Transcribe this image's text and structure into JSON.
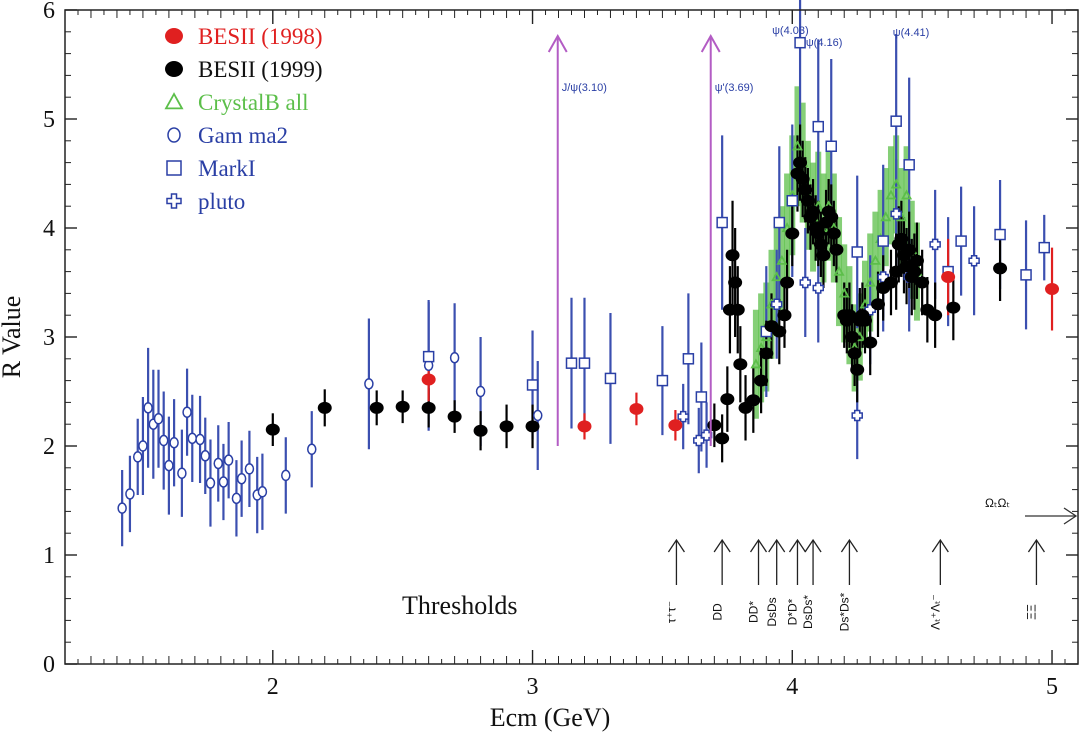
{
  "chart_data": {
    "type": "scatter",
    "xlabel": "Ecm (GeV)",
    "ylabel": "R Value",
    "xlim": [
      1.2,
      5.1
    ],
    "ylim": [
      0,
      6
    ],
    "xticks": [
      2,
      3,
      4,
      5
    ],
    "yticks": [
      0,
      1,
      2,
      3,
      4,
      5,
      6
    ],
    "thresholds_label": "Thresholds",
    "colors": {
      "red": "#e02020",
      "black": "#000000",
      "green": "#5cbf4a",
      "blue": "#2a3fa5",
      "magenta": "#b35cc4"
    },
    "series": [
      {
        "name": "BESII (1998)",
        "marker": "filled-circle",
        "color": "red",
        "points": [
          [
            2.6,
            2.61,
            0.2
          ],
          [
            3.2,
            2.18,
            0.12
          ],
          [
            3.4,
            2.34,
            0.15
          ],
          [
            3.55,
            2.19,
            0.14
          ],
          [
            4.6,
            3.55,
            0.35
          ],
          [
            5.0,
            3.44,
            0.38
          ]
        ]
      },
      {
        "name": "BESII (1999)",
        "marker": "filled-circle",
        "color": "black",
        "points": [
          [
            2.0,
            2.15,
            0.15
          ],
          [
            2.2,
            2.35,
            0.17
          ],
          [
            2.4,
            2.35,
            0.16
          ],
          [
            2.5,
            2.36,
            0.15
          ],
          [
            2.6,
            2.35,
            0.18
          ],
          [
            2.7,
            2.27,
            0.15
          ],
          [
            2.8,
            2.14,
            0.18
          ],
          [
            2.9,
            2.18,
            0.2
          ],
          [
            3.0,
            2.18,
            0.2
          ],
          [
            3.7,
            2.19,
            0.2
          ],
          [
            3.73,
            2.07,
            0.22
          ],
          [
            3.75,
            2.43,
            0.3
          ],
          [
            3.76,
            3.25,
            0.4
          ],
          [
            3.77,
            3.75,
            0.5
          ],
          [
            3.78,
            3.5,
            0.5
          ],
          [
            3.79,
            3.25,
            0.4
          ],
          [
            3.8,
            2.75,
            0.35
          ],
          [
            3.82,
            2.35,
            0.3
          ],
          [
            3.85,
            2.42,
            0.3
          ],
          [
            3.88,
            2.6,
            0.3
          ],
          [
            3.9,
            2.85,
            0.3
          ],
          [
            3.92,
            3.1,
            0.3
          ],
          [
            3.95,
            3.05,
            0.3
          ],
          [
            3.97,
            3.2,
            0.3
          ],
          [
            3.98,
            3.5,
            0.3
          ],
          [
            4.0,
            3.95,
            0.3
          ],
          [
            4.02,
            4.5,
            0.35
          ],
          [
            4.03,
            4.6,
            0.35
          ],
          [
            4.04,
            4.45,
            0.35
          ],
          [
            4.05,
            4.35,
            0.3
          ],
          [
            4.06,
            4.25,
            0.3
          ],
          [
            4.07,
            4.1,
            0.3
          ],
          [
            4.08,
            4.15,
            0.3
          ],
          [
            4.09,
            4.0,
            0.3
          ],
          [
            4.1,
            3.95,
            0.3
          ],
          [
            4.11,
            3.85,
            0.3
          ],
          [
            4.12,
            3.75,
            0.3
          ],
          [
            4.13,
            4.05,
            0.3
          ],
          [
            4.14,
            4.15,
            0.3
          ],
          [
            4.15,
            4.1,
            0.3
          ],
          [
            4.16,
            3.95,
            0.3
          ],
          [
            4.17,
            3.8,
            0.3
          ],
          [
            4.2,
            3.2,
            0.3
          ],
          [
            4.21,
            3.15,
            0.3
          ],
          [
            4.22,
            3.2,
            0.3
          ],
          [
            4.23,
            3.0,
            0.3
          ],
          [
            4.24,
            2.85,
            0.3
          ],
          [
            4.25,
            2.7,
            0.3
          ],
          [
            4.26,
            3.15,
            0.3
          ],
          [
            4.27,
            3.2,
            0.3
          ],
          [
            4.28,
            3.15,
            0.3
          ],
          [
            4.3,
            2.95,
            0.3
          ],
          [
            4.33,
            3.3,
            0.3
          ],
          [
            4.35,
            3.45,
            0.3
          ],
          [
            4.38,
            3.5,
            0.3
          ],
          [
            4.4,
            3.6,
            0.35
          ],
          [
            4.41,
            3.85,
            0.35
          ],
          [
            4.42,
            3.9,
            0.35
          ],
          [
            4.43,
            3.75,
            0.35
          ],
          [
            4.44,
            3.65,
            0.35
          ],
          [
            4.45,
            3.8,
            0.35
          ],
          [
            4.46,
            3.55,
            0.35
          ],
          [
            4.47,
            3.6,
            0.35
          ],
          [
            4.48,
            3.7,
            0.35
          ],
          [
            4.5,
            3.5,
            0.3
          ],
          [
            4.52,
            3.25,
            0.3
          ],
          [
            4.55,
            3.2,
            0.3
          ],
          [
            4.62,
            3.27,
            0.3
          ],
          [
            4.8,
            3.63,
            0.3
          ]
        ]
      },
      {
        "name": "CrystalB all",
        "marker": "open-triangle",
        "color": "green",
        "points": [
          [
            3.86,
            2.75,
            0.5
          ],
          [
            3.88,
            2.9,
            0.5
          ],
          [
            3.9,
            3.0,
            0.5
          ],
          [
            3.92,
            3.3,
            0.5
          ],
          [
            3.94,
            3.55,
            0.5
          ],
          [
            3.96,
            3.7,
            0.5
          ],
          [
            3.98,
            4.0,
            0.5
          ],
          [
            4.0,
            4.3,
            0.55
          ],
          [
            4.02,
            4.75,
            0.55
          ],
          [
            4.04,
            4.6,
            0.55
          ],
          [
            4.06,
            4.3,
            0.5
          ],
          [
            4.08,
            4.1,
            0.5
          ],
          [
            4.1,
            4.2,
            0.5
          ],
          [
            4.12,
            4.0,
            0.5
          ],
          [
            4.14,
            4.2,
            0.5
          ],
          [
            4.16,
            4.0,
            0.5
          ],
          [
            4.18,
            3.6,
            0.5
          ],
          [
            4.2,
            3.4,
            0.45
          ],
          [
            4.22,
            3.2,
            0.45
          ],
          [
            4.24,
            2.9,
            0.4
          ],
          [
            4.26,
            3.0,
            0.4
          ],
          [
            4.28,
            3.3,
            0.4
          ],
          [
            4.3,
            3.5,
            0.45
          ],
          [
            4.32,
            3.7,
            0.45
          ],
          [
            4.34,
            3.9,
            0.45
          ],
          [
            4.36,
            4.1,
            0.45
          ],
          [
            4.38,
            4.3,
            0.45
          ],
          [
            4.4,
            4.4,
            0.45
          ],
          [
            4.42,
            4.1,
            0.45
          ],
          [
            4.44,
            4.3,
            0.45
          ],
          [
            4.46,
            3.8,
            0.45
          ],
          [
            4.48,
            3.6,
            0.45
          ]
        ]
      },
      {
        "name": "Gam ma2",
        "marker": "open-circle",
        "color": "blue",
        "points": [
          [
            1.42,
            1.43,
            0.35
          ],
          [
            1.45,
            1.56,
            0.35
          ],
          [
            1.48,
            1.9,
            0.35
          ],
          [
            1.5,
            2.0,
            0.45
          ],
          [
            1.52,
            2.35,
            0.55
          ],
          [
            1.54,
            2.2,
            0.5
          ],
          [
            1.56,
            2.25,
            0.45
          ],
          [
            1.58,
            2.05,
            0.45
          ],
          [
            1.6,
            1.82,
            0.45
          ],
          [
            1.62,
            2.03,
            0.4
          ],
          [
            1.65,
            1.75,
            0.4
          ],
          [
            1.67,
            2.31,
            0.4
          ],
          [
            1.69,
            2.07,
            0.4
          ],
          [
            1.72,
            2.06,
            0.4
          ],
          [
            1.74,
            1.91,
            0.35
          ],
          [
            1.76,
            1.66,
            0.4
          ],
          [
            1.79,
            1.84,
            0.35
          ],
          [
            1.81,
            1.67,
            0.35
          ],
          [
            1.83,
            1.87,
            0.35
          ],
          [
            1.86,
            1.52,
            0.35
          ],
          [
            1.88,
            1.7,
            0.35
          ],
          [
            1.91,
            1.79,
            0.35
          ],
          [
            1.94,
            1.55,
            0.35
          ],
          [
            1.96,
            1.58,
            0.35
          ],
          [
            2.05,
            1.73,
            0.35
          ],
          [
            2.15,
            1.97,
            0.35
          ],
          [
            2.37,
            2.57,
            0.6
          ],
          [
            2.6,
            2.74,
            0.6
          ],
          [
            2.7,
            2.81,
            0.5
          ],
          [
            2.8,
            2.5,
            0.5
          ],
          [
            3.02,
            2.28,
            0.5
          ]
        ]
      },
      {
        "name": "MarkI",
        "marker": "open-square",
        "color": "blue",
        "points": [
          [
            2.6,
            2.82,
            0.5
          ],
          [
            3.0,
            2.56,
            0.5
          ],
          [
            3.15,
            2.76,
            0.6
          ],
          [
            3.2,
            2.76,
            0.6
          ],
          [
            3.3,
            2.62,
            0.6
          ],
          [
            3.5,
            2.6,
            0.5
          ],
          [
            3.6,
            2.8,
            0.6
          ],
          [
            3.65,
            2.45,
            0.5
          ],
          [
            3.73,
            4.05,
            0.8
          ],
          [
            3.9,
            3.05,
            0.6
          ],
          [
            3.95,
            4.05,
            0.7
          ],
          [
            4.0,
            4.25,
            0.7
          ],
          [
            4.03,
            5.7,
            1.0
          ],
          [
            4.1,
            4.93,
            0.8
          ],
          [
            4.15,
            4.75,
            0.8
          ],
          [
            4.25,
            3.78,
            0.7
          ],
          [
            4.35,
            3.88,
            0.7
          ],
          [
            4.4,
            4.98,
            0.8
          ],
          [
            4.45,
            4.58,
            0.8
          ],
          [
            4.6,
            3.6,
            0.5
          ],
          [
            4.65,
            3.88,
            0.5
          ],
          [
            4.8,
            3.94,
            0.5
          ],
          [
            4.9,
            3.57,
            0.5
          ],
          [
            4.97,
            3.82,
            0.3
          ]
        ]
      },
      {
        "name": "pluto",
        "marker": "open-cross",
        "color": "blue",
        "points": [
          [
            3.58,
            2.27,
            0.3
          ],
          [
            3.64,
            2.05,
            0.3
          ],
          [
            3.67,
            2.1,
            0.3
          ],
          [
            3.94,
            3.3,
            0.5
          ],
          [
            4.05,
            3.5,
            0.5
          ],
          [
            4.1,
            3.45,
            0.5
          ],
          [
            4.25,
            2.28,
            0.4
          ],
          [
            4.3,
            3.25,
            0.5
          ],
          [
            4.35,
            3.55,
            0.5
          ],
          [
            4.4,
            4.13,
            0.5
          ],
          [
            4.45,
            3.55,
            0.5
          ],
          [
            4.55,
            3.85,
            0.5
          ],
          [
            4.7,
            3.7,
            0.5
          ]
        ]
      }
    ],
    "resonances": [
      {
        "label": "J/ψ(3.10)",
        "x": 3.097
      },
      {
        "label": "ψ'(3.69)",
        "x": 3.686
      },
      {
        "label": "ψ(4.03)",
        "x": 4.03
      },
      {
        "label": "ψ(4.16)",
        "x": 4.16
      },
      {
        "label": "ψ(4.41)",
        "x": 4.41
      }
    ],
    "thresholds": [
      {
        "label": "τ⁺τ⁻",
        "x": 3.554
      },
      {
        "label": "DD",
        "x": 3.73
      },
      {
        "label": "DD*",
        "x": 3.87
      },
      {
        "label": "DsDs",
        "x": 3.94
      },
      {
        "label": "D*D*",
        "x": 4.02
      },
      {
        "label": "DsDs*",
        "x": 4.08
      },
      {
        "label": "Ds*Ds*",
        "x": 4.22
      },
      {
        "label": "Λₜ⁺Λₜ⁻",
        "x": 4.57
      },
      {
        "label": "ΞΞ",
        "x": 4.94
      }
    ],
    "omega_label": "ΩₜΩₜ"
  }
}
